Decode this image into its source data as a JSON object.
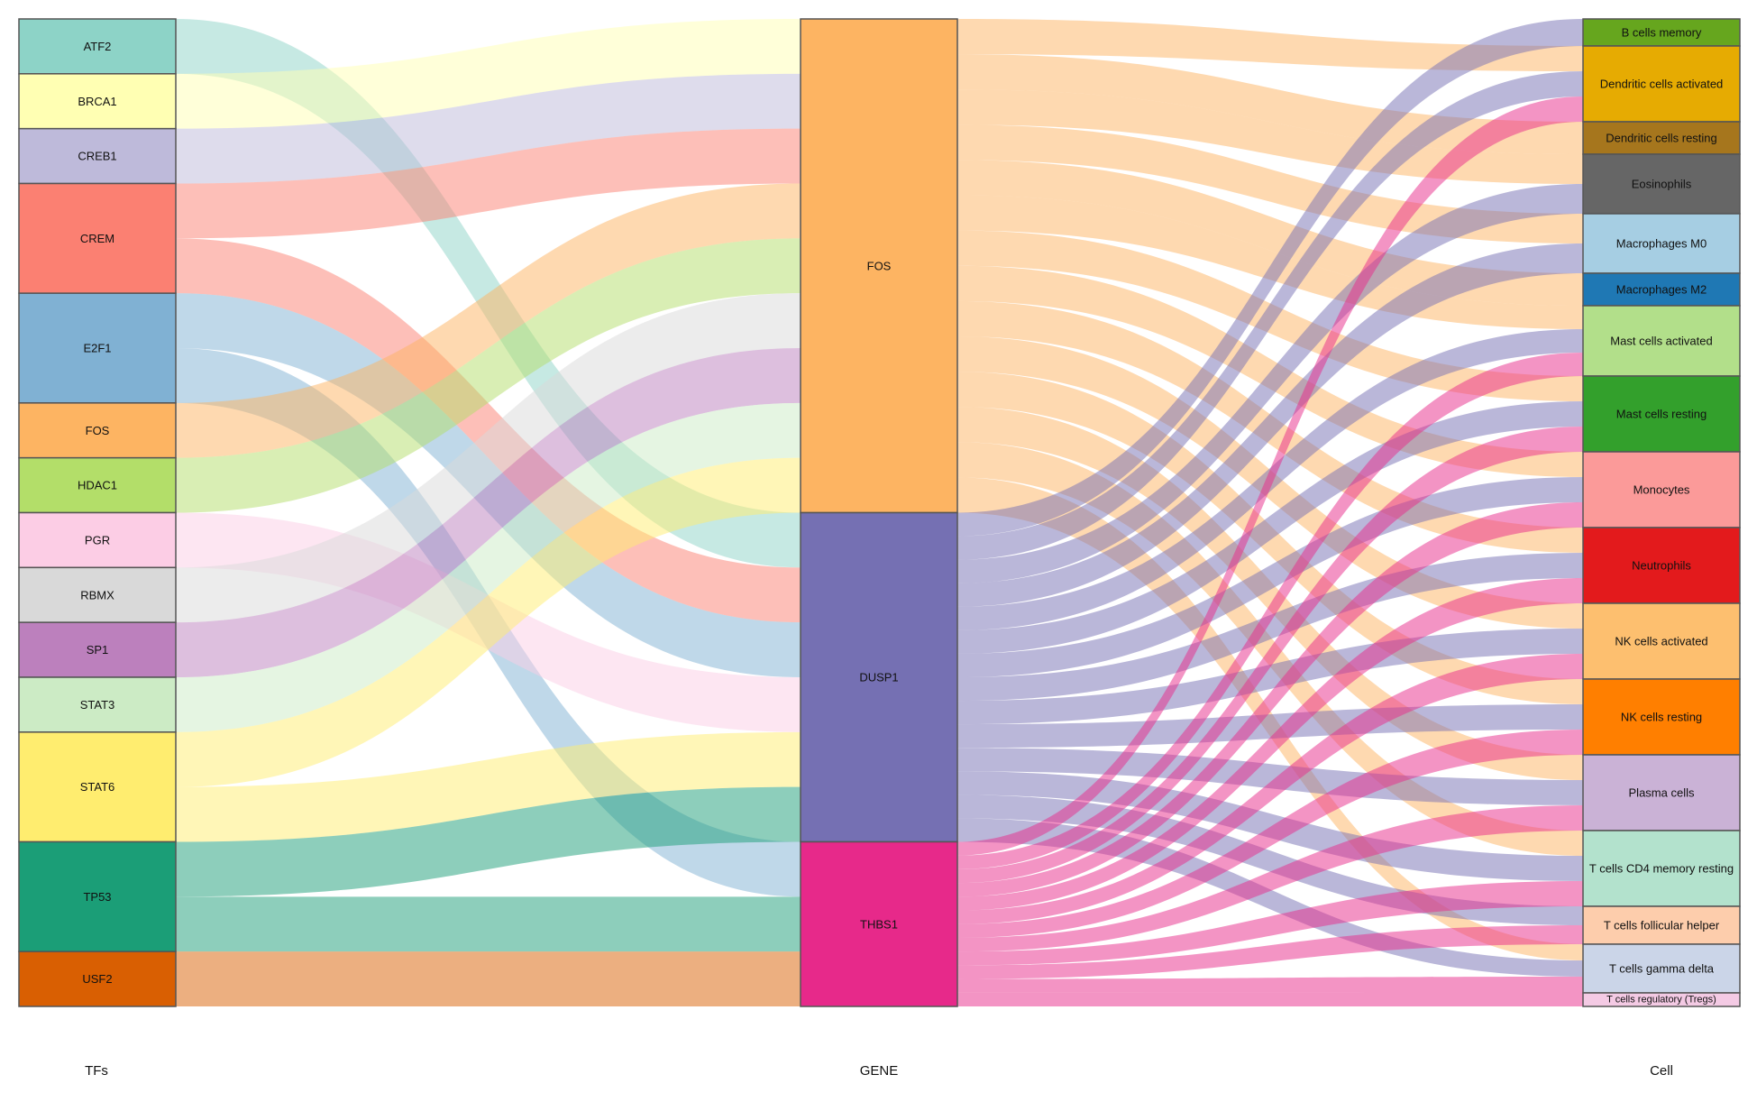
{
  "axes": {
    "left": "TFs",
    "middle": "GENE",
    "right": "Cell"
  },
  "colors": {
    "node_stroke": "#555555",
    "link_opacity": 0.5
  },
  "tfs": [
    {
      "name": "ATF2",
      "color": "#8dd3c7",
      "units": 1
    },
    {
      "name": "BRCA1",
      "color": "#ffffb3",
      "units": 1
    },
    {
      "name": "CREB1",
      "color": "#bebada",
      "units": 1
    },
    {
      "name": "CREM",
      "color": "#fb8072",
      "units": 2
    },
    {
      "name": "E2F1",
      "color": "#80b1d3",
      "units": 2
    },
    {
      "name": "FOS",
      "color": "#fdb462",
      "units": 1
    },
    {
      "name": "HDAC1",
      "color": "#b3de69",
      "units": 1
    },
    {
      "name": "PGR",
      "color": "#fccde5",
      "units": 1
    },
    {
      "name": "RBMX",
      "color": "#d9d9d9",
      "units": 1
    },
    {
      "name": "SP1",
      "color": "#bc80bd",
      "units": 1
    },
    {
      "name": "STAT3",
      "color": "#ccebc5",
      "units": 1
    },
    {
      "name": "STAT6",
      "color": "#ffed6f",
      "units": 2
    },
    {
      "name": "TP53",
      "color": "#1b9e77",
      "units": 2
    },
    {
      "name": "USF2",
      "color": "#d95f02",
      "units": 1
    }
  ],
  "genes": [
    {
      "name": "FOS",
      "color": "#fdb462",
      "units": 9
    },
    {
      "name": "DUSP1",
      "color": "#7570b3",
      "units": 6
    },
    {
      "name": "THBS1",
      "color": "#e7298a",
      "units": 3
    }
  ],
  "cells": [
    {
      "name": "B cells memory",
      "color": "#66a61e",
      "units": 0.5
    },
    {
      "name": "Dendritic cells activated",
      "color": "#e6ab02",
      "units": 1.4
    },
    {
      "name": "Dendritic cells resting",
      "color": "#a6761d",
      "units": 0.6
    },
    {
      "name": "Eosinophils",
      "color": "#666666",
      "units": 1.1
    },
    {
      "name": "Macrophages M0",
      "color": "#a6cee3",
      "units": 1.1
    },
    {
      "name": "Macrophages M2",
      "color": "#1f78b4",
      "units": 0.6
    },
    {
      "name": "Mast cells activated",
      "color": "#b2df8a",
      "units": 1.3
    },
    {
      "name": "Mast cells resting",
      "color": "#33a02c",
      "units": 1.4
    },
    {
      "name": "Monocytes",
      "color": "#fb9a99",
      "units": 1.4
    },
    {
      "name": "Neutrophils",
      "color": "#e31a1c",
      "units": 1.4
    },
    {
      "name": "NK cells activated",
      "color": "#fdbf6f",
      "units": 1.4
    },
    {
      "name": "NK cells resting",
      "color": "#ff7f00",
      "units": 1.4
    },
    {
      "name": "Plasma cells",
      "color": "#cab2d6",
      "units": 1.4
    },
    {
      "name": "T cells CD4 memory resting",
      "color": "#b3e2cd",
      "units": 1.4
    },
    {
      "name": "T cells follicular helper",
      "color": "#fdcdac",
      "units": 0.7
    },
    {
      "name": "T cells gamma delta",
      "color": "#cbd5e8",
      "units": 0.9
    },
    {
      "name": "T cells regulatory (Tregs)",
      "color": "#f4cae4",
      "units": 0.25
    }
  ],
  "tf_links": [
    {
      "tf": "ATF2",
      "gene": "DUSP1",
      "units": 1
    },
    {
      "tf": "BRCA1",
      "gene": "FOS",
      "units": 1
    },
    {
      "tf": "CREB1",
      "gene": "FOS",
      "units": 1
    },
    {
      "tf": "CREM",
      "gene": "FOS",
      "units": 1
    },
    {
      "tf": "CREM",
      "gene": "DUSP1",
      "units": 1
    },
    {
      "tf": "E2F1",
      "gene": "DUSP1",
      "units": 1
    },
    {
      "tf": "E2F1",
      "gene": "THBS1",
      "units": 1
    },
    {
      "tf": "FOS",
      "gene": "FOS",
      "units": 1
    },
    {
      "tf": "HDAC1",
      "gene": "FOS",
      "units": 1
    },
    {
      "tf": "PGR",
      "gene": "DUSP1",
      "units": 1
    },
    {
      "tf": "RBMX",
      "gene": "FOS",
      "units": 1
    },
    {
      "tf": "SP1",
      "gene": "FOS",
      "units": 1
    },
    {
      "tf": "STAT3",
      "gene": "FOS",
      "units": 1
    },
    {
      "tf": "STAT6",
      "gene": "FOS",
      "units": 1
    },
    {
      "tf": "STAT6",
      "gene": "DUSP1",
      "units": 1
    },
    {
      "tf": "TP53",
      "gene": "DUSP1",
      "units": 1
    },
    {
      "tf": "TP53",
      "gene": "THBS1",
      "units": 1
    },
    {
      "tf": "USF2",
      "gene": "THBS1",
      "units": 1
    }
  ],
  "gene_links": {
    "FOS": [
      "Dendritic cells activated",
      "Dendritic cells resting",
      "Eosinophils",
      "Macrophages M0",
      "Macrophages M2",
      "Mast cells activated",
      "Mast cells resting",
      "Monocytes",
      "Neutrophils",
      "NK cells activated",
      "NK cells resting",
      "Plasma cells",
      "T cells CD4 memory resting",
      "T cells gamma delta"
    ],
    "DUSP1": [
      "B cells memory",
      "Dendritic cells activated",
      "Eosinophils",
      "Macrophages M0",
      "Mast cells activated",
      "Mast cells resting",
      "Monocytes",
      "Neutrophils",
      "NK cells activated",
      "NK cells resting",
      "Plasma cells",
      "T cells CD4 memory resting",
      "T cells follicular helper",
      "T cells gamma delta"
    ],
    "THBS1": [
      "Dendritic cells activated",
      "Mast cells activated",
      "Mast cells resting",
      "Monocytes",
      "Neutrophils",
      "NK cells activated",
      "NK cells resting",
      "Plasma cells",
      "T cells CD4 memory resting",
      "T cells follicular helper",
      "T cells gamma delta",
      "T cells regulatory (Tregs)"
    ]
  }
}
